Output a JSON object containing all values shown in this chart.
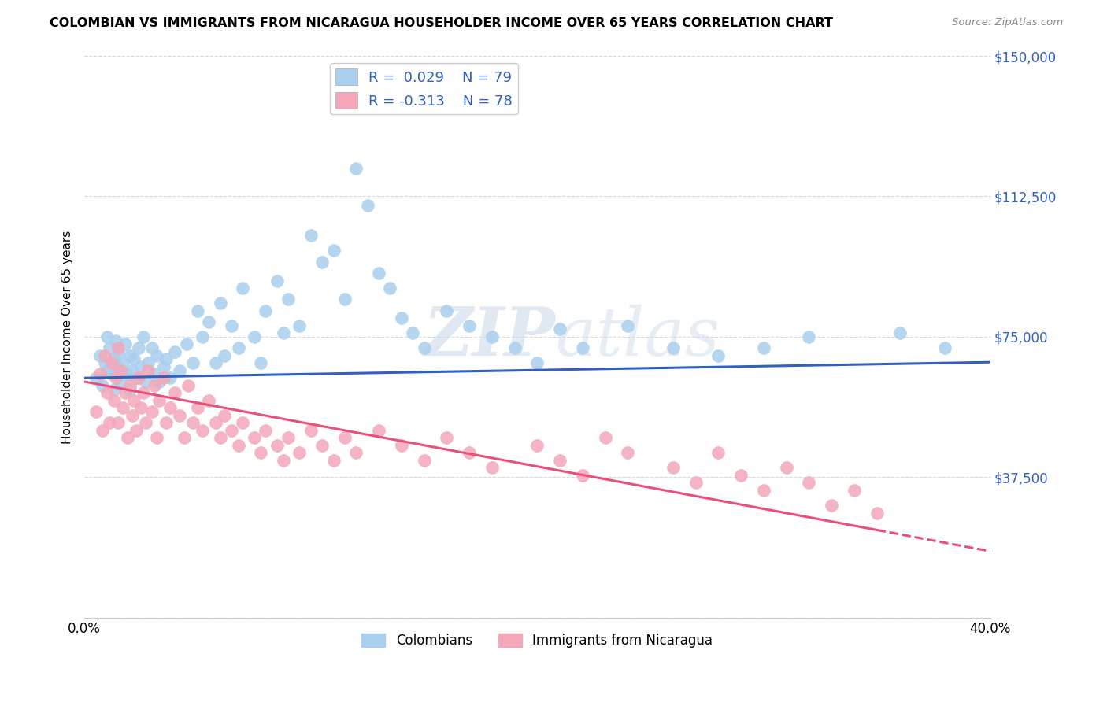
{
  "title": "COLOMBIAN VS IMMIGRANTS FROM NICARAGUA HOUSEHOLDER INCOME OVER 65 YEARS CORRELATION CHART",
  "source": "Source: ZipAtlas.com",
  "ylabel": "Householder Income Over 65 years",
  "xlim": [
    0.0,
    0.4
  ],
  "ylim": [
    0,
    150000
  ],
  "yticks": [
    0,
    37500,
    75000,
    112500,
    150000
  ],
  "xticks": [
    0.0,
    0.1,
    0.2,
    0.3,
    0.4
  ],
  "xtick_labels": [
    "0.0%",
    "",
    "",
    "",
    "40.0%"
  ],
  "colombian_color": "#aacfee",
  "nicaragua_color": "#f4a7b9",
  "colombian_R": 0.029,
  "colombian_N": 79,
  "nicaragua_R": -0.313,
  "nicaragua_N": 78,
  "trend_color_colombian": "#3060c0",
  "trend_color_nicaragua": "#e8507a",
  "watermark_zip": "ZIP",
  "watermark_atlas": "atlas",
  "background_color": "#ffffff",
  "grid_color": "#d8d8d8",
  "colombian_scatter_x": [
    0.005,
    0.007,
    0.008,
    0.009,
    0.01,
    0.01,
    0.011,
    0.012,
    0.013,
    0.013,
    0.014,
    0.015,
    0.015,
    0.016,
    0.017,
    0.018,
    0.019,
    0.02,
    0.02,
    0.021,
    0.022,
    0.023,
    0.024,
    0.025,
    0.026,
    0.027,
    0.028,
    0.03,
    0.031,
    0.032,
    0.033,
    0.035,
    0.036,
    0.038,
    0.04,
    0.042,
    0.045,
    0.048,
    0.05,
    0.052,
    0.055,
    0.058,
    0.06,
    0.062,
    0.065,
    0.068,
    0.07,
    0.075,
    0.078,
    0.08,
    0.085,
    0.088,
    0.09,
    0.095,
    0.1,
    0.105,
    0.11,
    0.115,
    0.12,
    0.125,
    0.13,
    0.135,
    0.14,
    0.145,
    0.15,
    0.16,
    0.17,
    0.18,
    0.19,
    0.2,
    0.21,
    0.22,
    0.24,
    0.26,
    0.28,
    0.3,
    0.32,
    0.36,
    0.38
  ],
  "colombian_scatter_y": [
    64000,
    70000,
    62000,
    68000,
    75000,
    66000,
    72000,
    65000,
    69000,
    61000,
    74000,
    67000,
    71000,
    63000,
    68000,
    73000,
    65000,
    70000,
    61000,
    66000,
    69000,
    64000,
    72000,
    67000,
    75000,
    63000,
    68000,
    72000,
    65000,
    70000,
    63000,
    67000,
    69000,
    64000,
    71000,
    66000,
    73000,
    68000,
    82000,
    75000,
    79000,
    68000,
    84000,
    70000,
    78000,
    72000,
    88000,
    75000,
    68000,
    82000,
    90000,
    76000,
    85000,
    78000,
    102000,
    95000,
    98000,
    85000,
    120000,
    110000,
    92000,
    88000,
    80000,
    76000,
    72000,
    82000,
    78000,
    75000,
    72000,
    68000,
    77000,
    72000,
    78000,
    72000,
    70000,
    72000,
    75000,
    76000,
    72000
  ],
  "nicaragua_scatter_x": [
    0.005,
    0.007,
    0.008,
    0.009,
    0.01,
    0.011,
    0.012,
    0.013,
    0.014,
    0.015,
    0.015,
    0.016,
    0.017,
    0.018,
    0.019,
    0.02,
    0.021,
    0.022,
    0.023,
    0.024,
    0.025,
    0.026,
    0.027,
    0.028,
    0.03,
    0.031,
    0.032,
    0.033,
    0.035,
    0.036,
    0.038,
    0.04,
    0.042,
    0.044,
    0.046,
    0.048,
    0.05,
    0.052,
    0.055,
    0.058,
    0.06,
    0.062,
    0.065,
    0.068,
    0.07,
    0.075,
    0.078,
    0.08,
    0.085,
    0.088,
    0.09,
    0.095,
    0.1,
    0.105,
    0.11,
    0.115,
    0.12,
    0.13,
    0.14,
    0.15,
    0.16,
    0.17,
    0.18,
    0.2,
    0.21,
    0.22,
    0.23,
    0.24,
    0.26,
    0.27,
    0.28,
    0.29,
    0.3,
    0.31,
    0.32,
    0.33,
    0.34,
    0.35
  ],
  "nicaragua_scatter_y": [
    55000,
    65000,
    50000,
    70000,
    60000,
    52000,
    68000,
    58000,
    64000,
    72000,
    52000,
    66000,
    56000,
    60000,
    48000,
    62000,
    54000,
    58000,
    50000,
    64000,
    56000,
    60000,
    52000,
    66000,
    55000,
    62000,
    48000,
    58000,
    64000,
    52000,
    56000,
    60000,
    54000,
    48000,
    62000,
    52000,
    56000,
    50000,
    58000,
    52000,
    48000,
    54000,
    50000,
    46000,
    52000,
    48000,
    44000,
    50000,
    46000,
    42000,
    48000,
    44000,
    50000,
    46000,
    42000,
    48000,
    44000,
    50000,
    46000,
    42000,
    48000,
    44000,
    40000,
    46000,
    42000,
    38000,
    48000,
    44000,
    40000,
    36000,
    44000,
    38000,
    34000,
    40000,
    36000,
    30000,
    34000,
    28000
  ]
}
